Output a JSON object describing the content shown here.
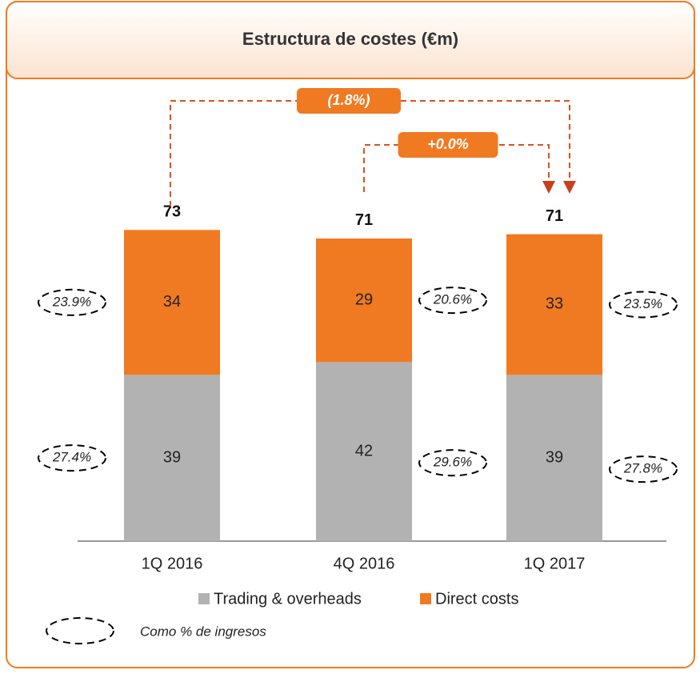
{
  "chart_data": {
    "type": "bar",
    "stacked": true,
    "title": "Estructura de costes (€m)",
    "categories": [
      "1Q 2016",
      "4Q 2016",
      "1Q 2017"
    ],
    "series": [
      {
        "name": "Trading & overheads",
        "color": "#b2b2b2",
        "values": [
          39,
          42,
          39
        ],
        "pct_labels": [
          "27.4%",
          "29.6%",
          "27.8%"
        ]
      },
      {
        "name": "Direct costs",
        "color": "#f07a22",
        "values": [
          34,
          29,
          33
        ],
        "pct_labels": [
          "23.9%",
          "20.6%",
          "23.5%"
        ]
      }
    ],
    "totals": [
      73,
      71,
      71
    ],
    "comparisons": [
      "(1.8%)",
      "+0.0%"
    ],
    "note": "Como % de ingresos",
    "ylim": [
      0,
      80
    ]
  }
}
